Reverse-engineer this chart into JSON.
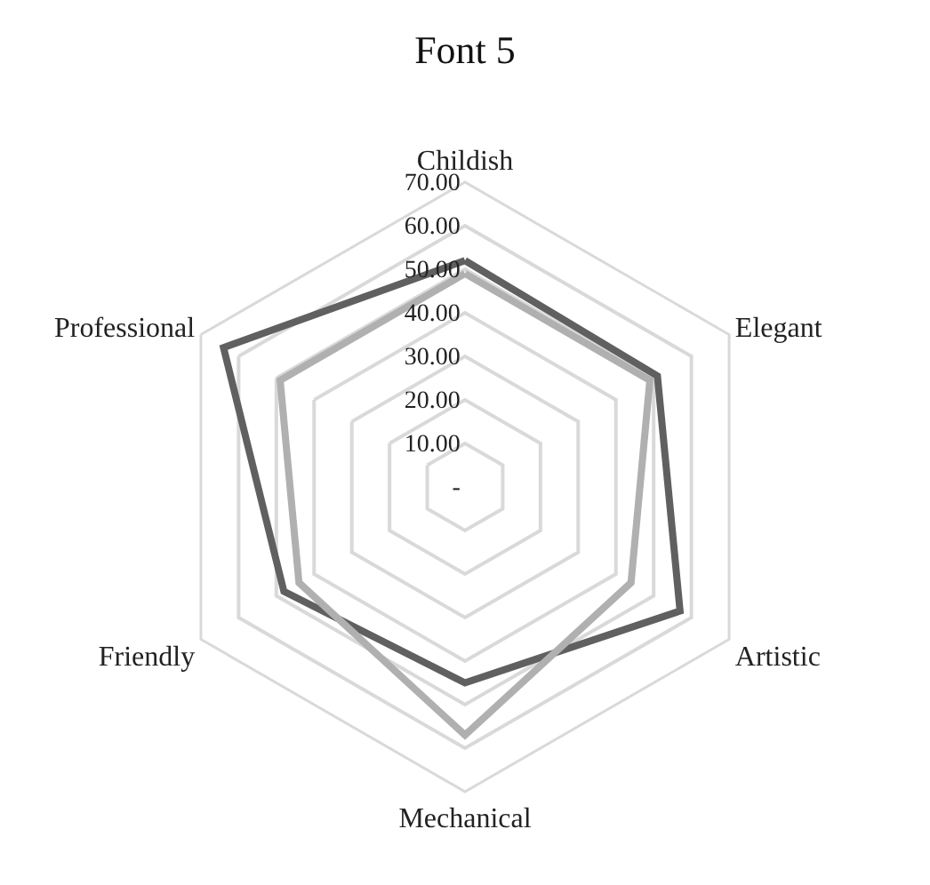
{
  "chart_data": {
    "type": "radar",
    "title": "Font 5",
    "categories": [
      "Childish",
      "Elegant",
      "Artistic",
      "Mechanical",
      "Friendly",
      "Professional"
    ],
    "series": [
      {
        "color": "#606060",
        "values": [
          52,
          51,
          57,
          45,
          48,
          64
        ]
      },
      {
        "color": "#b0b0b0",
        "values": [
          49,
          49,
          44,
          57,
          44,
          49
        ]
      }
    ],
    "ylim": [
      0,
      70
    ],
    "yticks": [
      {
        "value": 0,
        "label": "-"
      },
      {
        "value": 10,
        "label": "10.00"
      },
      {
        "value": 20,
        "label": "20.00"
      },
      {
        "value": 30,
        "label": "30.00"
      },
      {
        "value": 40,
        "label": "40.00"
      },
      {
        "value": 50,
        "label": "50.00"
      },
      {
        "value": 60,
        "label": "60.00"
      },
      {
        "value": 70,
        "label": "70.00"
      }
    ],
    "grid": true,
    "marker": "none",
    "line_style": "solid"
  }
}
